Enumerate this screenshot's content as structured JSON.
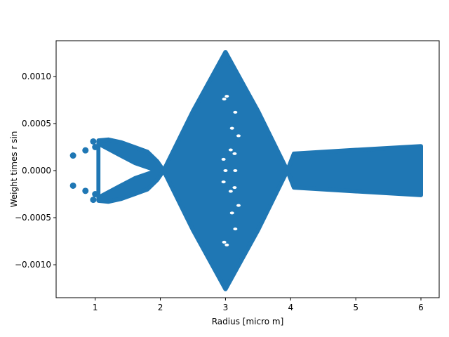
{
  "chart_data": {
    "type": "scatter",
    "xlabel": "Radius [micro m]",
    "ylabel": "Weight times  r  sin",
    "xlim": [
      0.4,
      6.28
    ],
    "ylim": [
      -0.00135,
      0.00138
    ],
    "xticks": [
      1,
      2,
      3,
      4,
      5,
      6
    ],
    "xtick_labels": [
      "1",
      "2",
      "3",
      "4",
      "5",
      "6"
    ],
    "yticks": [
      -0.001,
      -0.0005,
      0.0,
      0.0005,
      0.001
    ],
    "ytick_labels": [
      "−0.0010",
      "−0.0005",
      "0.0000",
      "0.0005",
      "0.0010"
    ],
    "grid": false,
    "series_color": "#1f77b4",
    "isolated_points": [
      {
        "x": 0.66,
        "y": 0.00016
      },
      {
        "x": 0.66,
        "y": -0.00016
      },
      {
        "x": 0.85,
        "y": 0.000215
      },
      {
        "x": 0.85,
        "y": -0.000215
      },
      {
        "x": 1.0,
        "y": 0.00025
      },
      {
        "x": 1.0,
        "y": -0.00025
      },
      {
        "x": 0.97,
        "y": 0.00031
      },
      {
        "x": 0.97,
        "y": -0.00031
      }
    ],
    "envelope": [
      {
        "x": 1.05,
        "y": 0.00032
      },
      {
        "x": 1.2,
        "y": 0.00033
      },
      {
        "x": 1.4,
        "y": 0.0003
      },
      {
        "x": 1.6,
        "y": 0.00025
      },
      {
        "x": 1.8,
        "y": 0.0002
      },
      {
        "x": 1.95,
        "y": 0.0001
      },
      {
        "x": 2.05,
        "y": 0.0
      },
      {
        "x": 2.5,
        "y": 0.00063
      },
      {
        "x": 3.0,
        "y": 0.00126
      },
      {
        "x": 3.5,
        "y": 0.00063
      },
      {
        "x": 3.95,
        "y": 0.0
      },
      {
        "x": 4.05,
        "y": 0.00018
      },
      {
        "x": 5.0,
        "y": 0.00022
      },
      {
        "x": 6.0,
        "y": 0.00026
      }
    ]
  }
}
